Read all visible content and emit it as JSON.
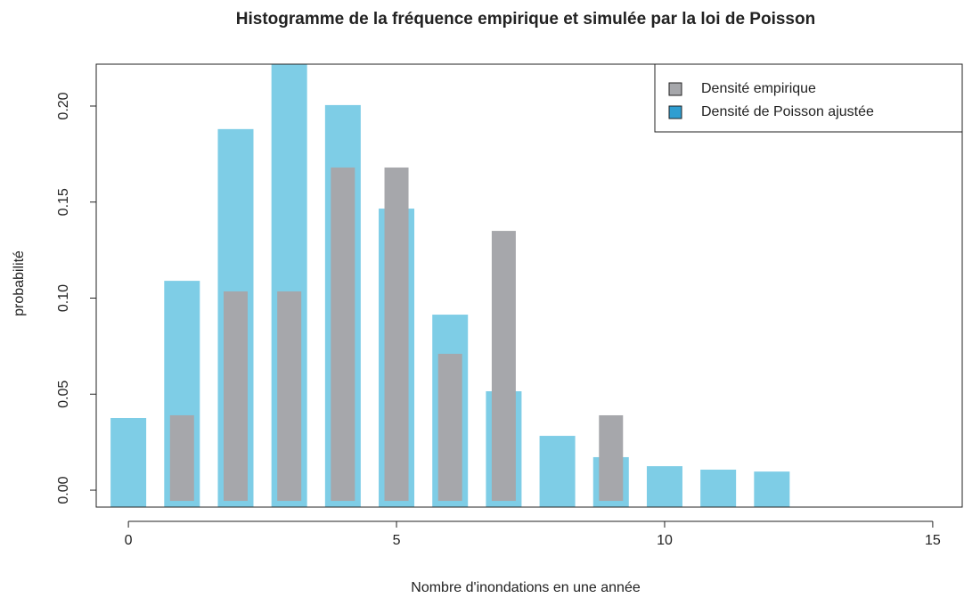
{
  "chart_data": {
    "type": "bar",
    "title": "Histogramme de la fréquence empirique et simulée par la loi de Poisson",
    "x_label": "Nombre d'inondations en une année",
    "y_label": "probabilité",
    "series": [
      {
        "name": "Densité de Poisson ajustée",
        "color": "#7ecde6",
        "legend_color": "#2f9ed1",
        "x": [
          0,
          1,
          2,
          3,
          4,
          5,
          6,
          7,
          8,
          9,
          10,
          11,
          12
        ],
        "values": [
          0.0376,
          0.109,
          0.188,
          0.23,
          0.2005,
          0.1466,
          0.0914,
          0.0515,
          0.0283,
          0.0172,
          0.0125,
          0.0107,
          0.0097
        ]
      },
      {
        "name": "Densité empirique",
        "color": "#a6a7ab",
        "legend_color": "#a6a7ab",
        "x": [
          1,
          2,
          3,
          4,
          5,
          6,
          7,
          9
        ],
        "values": [
          0.039,
          0.1035,
          0.1035,
          0.168,
          0.168,
          0.071,
          0.135,
          0.039
        ]
      }
    ],
    "legend_order": [
      1,
      0
    ],
    "legend_position": "top-right",
    "xlim": [
      -0.6,
      15.55
    ],
    "xticks": [
      0,
      5,
      10,
      15
    ],
    "ylim": [
      -0.0088,
      0.2218
    ],
    "yticks": [
      {
        "value": 0,
        "label": "0.00"
      },
      {
        "value": 0.05,
        "label": "0.05"
      },
      {
        "value": 0.1,
        "label": "0.10"
      },
      {
        "value": 0.15,
        "label": "0.15"
      },
      {
        "value": 0.2,
        "label": "0.20"
      }
    ]
  }
}
